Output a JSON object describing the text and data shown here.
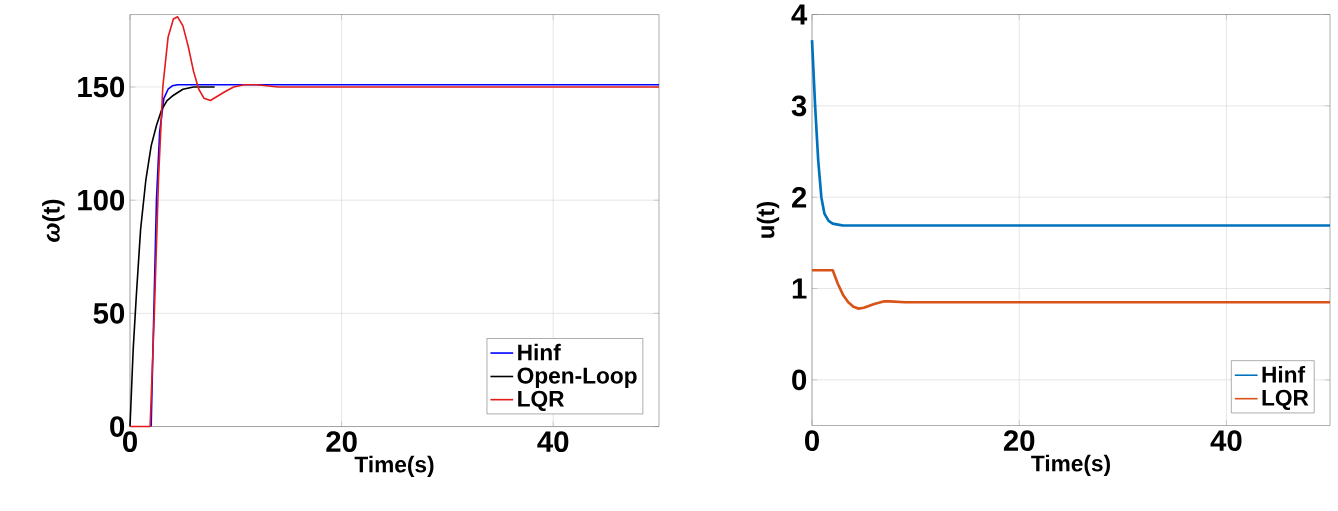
{
  "chart_data": [
    {
      "type": "line",
      "xlabel": "Time(s)",
      "ylabel": "*ω*(t)",
      "xlim": [
        0,
        50
      ],
      "ylim": [
        0,
        182
      ],
      "xticks": [
        0,
        20,
        40
      ],
      "yticks": [
        0,
        50,
        100,
        150
      ],
      "grid": true,
      "legend": "bottom right",
      "series": [
        {
          "name": "Hinf",
          "color": "#0000ff",
          "x": [
            2.0,
            2.2,
            2.5,
            2.8,
            3.2,
            3.6,
            4,
            4.5,
            6,
            10,
            20,
            50
          ],
          "values": [
            0,
            40,
            100,
            130,
            145,
            149,
            150.5,
            151,
            151,
            151,
            151,
            151
          ]
        },
        {
          "name": "Open-Loop",
          "color": "#000000",
          "x": [
            0,
            0.3,
            0.6,
            1,
            1.5,
            2,
            2.5,
            3,
            3.5,
            4,
            5,
            6,
            8
          ],
          "values": [
            0,
            34,
            58,
            87,
            109,
            124,
            133,
            140,
            144,
            146,
            149,
            150,
            150
          ]
        },
        {
          "name": "LQR",
          "color": "#e41a1c",
          "x": [
            0,
            1.9,
            2.3,
            2.7,
            3.1,
            3.6,
            4.1,
            4.5,
            5,
            5.5,
            6,
            6.5,
            7,
            7.6,
            8.3,
            9,
            9.8,
            10.8,
            12,
            14,
            17,
            50
          ],
          "values": [
            0,
            0,
            50,
            110,
            150,
            172,
            180,
            181,
            177,
            168,
            157,
            149,
            145,
            144,
            146,
            148,
            150,
            151,
            151,
            150,
            150,
            150
          ]
        }
      ]
    },
    {
      "type": "line",
      "xlabel": "Time(s)",
      "ylabel": "u(t)",
      "xlim": [
        0,
        50
      ],
      "ylim": [
        -0.5,
        4
      ],
      "xticks": [
        0,
        20,
        40
      ],
      "yticks": [
        0,
        1,
        2,
        3,
        4
      ],
      "grid": true,
      "legend": "bottom right",
      "series": [
        {
          "name": "Hinf",
          "color": "#0072bd",
          "x": [
            0,
            0.3,
            0.6,
            0.9,
            1.2,
            1.6,
            2,
            2.5,
            3,
            4,
            10,
            50
          ],
          "values": [
            3.72,
            3.0,
            2.4,
            2.0,
            1.82,
            1.74,
            1.71,
            1.7,
            1.69,
            1.69,
            1.69,
            1.69
          ]
        },
        {
          "name": "LQR",
          "color": "#d95319",
          "x": [
            0,
            2,
            2.5,
            3,
            3.5,
            4,
            4.5,
            5,
            6,
            7,
            7.5,
            9,
            11,
            15,
            50
          ],
          "values": [
            1.2,
            1.2,
            1.05,
            0.93,
            0.85,
            0.8,
            0.78,
            0.79,
            0.83,
            0.86,
            0.86,
            0.85,
            0.85,
            0.85,
            0.85
          ]
        }
      ]
    }
  ]
}
